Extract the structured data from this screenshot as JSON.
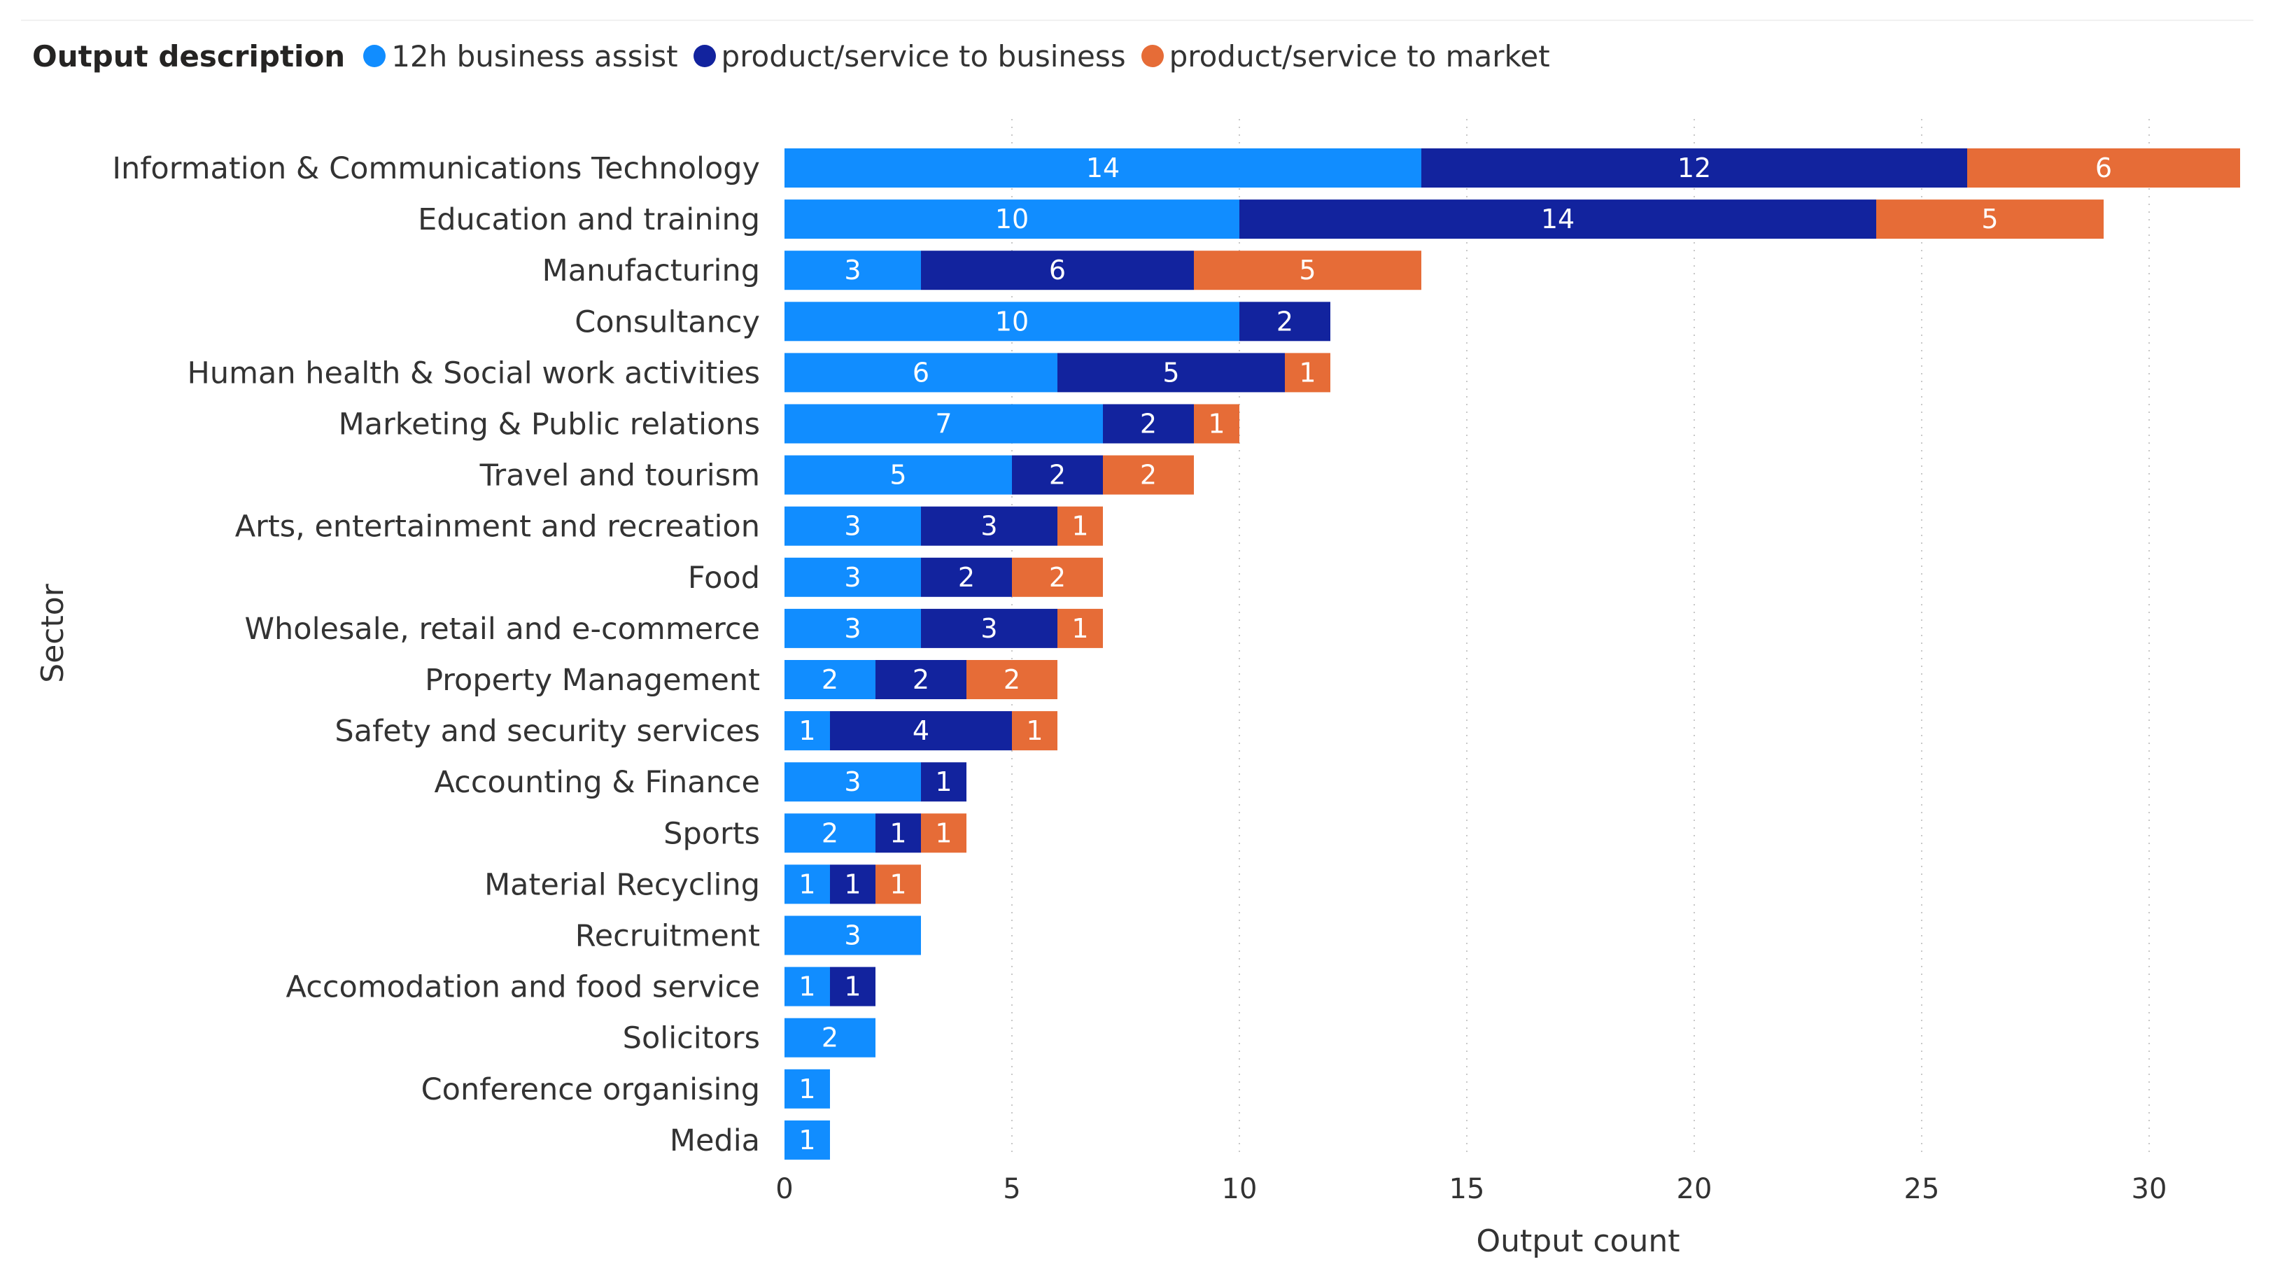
{
  "legend": {
    "title": "Output description"
  },
  "chart_data": {
    "type": "bar",
    "orientation": "horizontal",
    "stacked": true,
    "title": "",
    "xlabel": "Output count",
    "ylabel": "Sector",
    "xlim": [
      0,
      32
    ],
    "x_ticks": [
      0,
      5,
      10,
      15,
      20,
      25,
      30
    ],
    "grid": "vertical dotted",
    "legend_position": "top-left",
    "categories": [
      "Information & Communications Technology",
      "Education and training",
      "Manufacturing",
      "Consultancy",
      "Human health & Social work activities",
      "Marketing & Public relations",
      "Travel and tourism",
      "Arts, entertainment and recreation",
      "Food",
      "Wholesale, retail and e-commerce",
      "Property Management",
      "Safety and security services",
      "Accounting & Finance",
      "Sports",
      "Material Recycling",
      "Recruitment",
      "Accomodation and food service",
      "Solicitors",
      "Conference organising",
      "Media"
    ],
    "series": [
      {
        "name": "12h business assist",
        "color": "#118dff",
        "values": [
          14,
          10,
          3,
          10,
          6,
          7,
          5,
          3,
          3,
          3,
          2,
          1,
          3,
          2,
          1,
          3,
          1,
          2,
          1,
          1
        ]
      },
      {
        "name": "product/service to business",
        "color": "#12239e",
        "values": [
          12,
          14,
          6,
          2,
          5,
          2,
          2,
          3,
          2,
          3,
          2,
          4,
          1,
          1,
          1,
          0,
          1,
          0,
          0,
          0
        ]
      },
      {
        "name": "product/service to market",
        "color": "#e66c37",
        "values": [
          6,
          5,
          5,
          0,
          1,
          1,
          2,
          1,
          2,
          1,
          2,
          1,
          0,
          1,
          1,
          0,
          0,
          0,
          0,
          0
        ]
      }
    ]
  }
}
